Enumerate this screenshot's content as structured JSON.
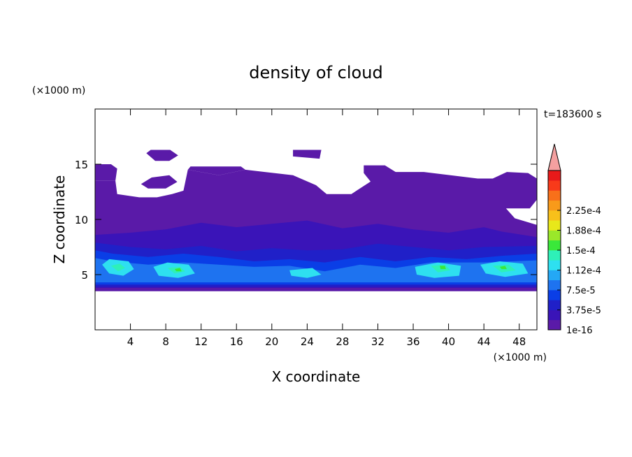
{
  "chart_data": {
    "type": "heatmap",
    "title": "density of cloud",
    "xlabel": "X coordinate",
    "ylabel": "Z coordinate",
    "x_unit": "(×1000 m)",
    "y_unit": "(×1000 m)",
    "time_label": "t=183600 s",
    "xlim": [
      0,
      50
    ],
    "ylim": [
      0,
      20
    ],
    "x_ticks": [
      4,
      8,
      12,
      16,
      20,
      24,
      28,
      32,
      36,
      40,
      44,
      48
    ],
    "y_ticks": [
      5,
      10,
      15
    ],
    "colorbar": {
      "labels": [
        "1e-16",
        "3.75e-5",
        "7.5e-5",
        "1.12e-4",
        "1.5e-4",
        "1.88e-4",
        "2.25e-4"
      ],
      "colors": [
        "#5a1aa8",
        "#3a14b8",
        "#2020c8",
        "#0a3ee6",
        "#1e73f0",
        "#24a8f5",
        "#2ee0f0",
        "#2ef0b8",
        "#3ae83a",
        "#9ae82a",
        "#e8e81a",
        "#f8c01a",
        "#f89a1a",
        "#f8701a",
        "#f83a1a",
        "#e81a1a"
      ],
      "overflow_color": "#f4a0a0"
    },
    "regions": [
      {
        "level": 0,
        "polygon": [
          [
            0,
            3.5
          ],
          [
            50,
            3.5
          ],
          [
            50,
            9.5
          ],
          [
            47.5,
            10.1
          ],
          [
            46.5,
            11
          ],
          [
            49.2,
            11
          ],
          [
            50,
            11.8
          ],
          [
            50,
            13.7
          ],
          [
            49,
            14.2
          ],
          [
            46.6,
            14.3
          ],
          [
            45,
            13.7
          ],
          [
            43.3,
            13.7
          ],
          [
            37.2,
            14.3
          ],
          [
            34,
            14.3
          ],
          [
            31.5,
            13.6
          ],
          [
            29,
            12.3
          ],
          [
            26.2,
            12.3
          ],
          [
            25,
            13.1
          ],
          [
            22.4,
            14
          ],
          [
            17,
            14.5
          ],
          [
            14,
            14
          ],
          [
            10.5,
            14.5
          ],
          [
            10,
            12.6
          ],
          [
            8.7,
            12.3
          ],
          [
            7,
            12
          ],
          [
            5,
            12
          ],
          [
            2.5,
            12.3
          ],
          [
            2.3,
            13.5
          ],
          [
            0,
            13.5
          ],
          [
            0,
            9.5
          ],
          [
            1.5,
            9.6
          ],
          [
            0,
            10.6
          ]
        ]
      },
      {
        "level": 0,
        "polygon": [
          [
            0,
            13.5
          ],
          [
            2.3,
            13.5
          ],
          [
            2.5,
            14.6
          ],
          [
            1.8,
            15
          ],
          [
            0,
            15
          ]
        ]
      },
      {
        "level": 0,
        "polygon": [
          [
            10.5,
            14.5
          ],
          [
            14,
            14
          ],
          [
            17,
            14.5
          ],
          [
            16.5,
            14.8
          ],
          [
            10.8,
            14.8
          ]
        ]
      },
      {
        "level": 0,
        "polygon": [
          [
            5.2,
            13.2
          ],
          [
            6.4,
            13.8
          ],
          [
            8.4,
            14
          ],
          [
            9.3,
            13.4
          ],
          [
            8,
            12.8
          ],
          [
            6,
            12.8
          ]
        ]
      },
      {
        "level": 0,
        "polygon": [
          [
            5.8,
            16
          ],
          [
            6.3,
            16.3
          ],
          [
            8.5,
            16.3
          ],
          [
            9.4,
            15.8
          ],
          [
            8.4,
            15.3
          ],
          [
            6.8,
            15.3
          ]
        ]
      },
      {
        "level": 0,
        "polygon": [
          [
            22.4,
            16.3
          ],
          [
            25.6,
            16.3
          ],
          [
            25.4,
            15.5
          ],
          [
            22.4,
            15.7
          ]
        ]
      },
      {
        "level": 0,
        "polygon": [
          [
            30.4,
            14.9
          ],
          [
            32.8,
            14.9
          ],
          [
            34.2,
            14.2
          ],
          [
            33,
            13.4
          ],
          [
            31.2,
            13.4
          ],
          [
            30.4,
            14.2
          ]
        ]
      },
      {
        "level": 1,
        "polygon": [
          [
            0,
            3.8
          ],
          [
            50,
            3.8
          ],
          [
            50,
            8.4
          ],
          [
            46,
            8.9
          ],
          [
            44,
            9.3
          ],
          [
            40,
            8.8
          ],
          [
            36,
            9.1
          ],
          [
            32,
            9.6
          ],
          [
            28,
            9.2
          ],
          [
            24,
            9.9
          ],
          [
            20,
            9.6
          ],
          [
            16,
            9.3
          ],
          [
            12,
            9.7
          ],
          [
            8,
            9.1
          ],
          [
            4,
            8.8
          ],
          [
            0,
            8.6
          ]
        ]
      },
      {
        "level": 2,
        "polygon": [
          [
            0,
            3.9
          ],
          [
            50,
            3.9
          ],
          [
            50,
            7.6
          ],
          [
            44,
            7.5
          ],
          [
            40,
            7.2
          ],
          [
            36,
            7.5
          ],
          [
            32,
            7.8
          ],
          [
            28,
            7.3
          ],
          [
            24,
            7.2
          ],
          [
            20,
            7.4
          ],
          [
            16,
            7.1
          ],
          [
            12,
            7.6
          ],
          [
            8,
            7.3
          ],
          [
            4,
            7.5
          ],
          [
            0,
            7.9
          ]
        ]
      },
      {
        "level": 3,
        "polygon": [
          [
            0,
            4.1
          ],
          [
            50,
            4.1
          ],
          [
            50,
            6.9
          ],
          [
            46,
            6.7
          ],
          [
            42,
            6.4
          ],
          [
            38,
            6.6
          ],
          [
            34,
            6.2
          ],
          [
            30,
            6.6
          ],
          [
            26,
            6.1
          ],
          [
            22,
            6.4
          ],
          [
            18,
            6.2
          ],
          [
            14,
            6.6
          ],
          [
            10,
            6.9
          ],
          [
            6,
            6.6
          ],
          [
            2,
            6.9
          ],
          [
            0,
            7.2
          ]
        ]
      },
      {
        "level": 4,
        "polygon": [
          [
            0,
            4.3
          ],
          [
            50,
            4.3
          ],
          [
            50,
            6.3
          ],
          [
            44,
            6.1
          ],
          [
            38,
            6.1
          ],
          [
            34,
            5.6
          ],
          [
            30,
            5.9
          ],
          [
            26,
            5.3
          ],
          [
            22,
            5.8
          ],
          [
            18,
            5.7
          ],
          [
            14,
            5.9
          ],
          [
            10,
            6.1
          ],
          [
            6,
            5.9
          ],
          [
            2,
            6.2
          ],
          [
            0,
            6.5
          ]
        ]
      },
      {
        "level": 6,
        "polygon": [
          [
            0.8,
            5.9
          ],
          [
            1.6,
            6.4
          ],
          [
            3.8,
            6.2
          ],
          [
            4.4,
            5.5
          ],
          [
            3.2,
            4.9
          ],
          [
            1.6,
            5.1
          ]
        ]
      },
      {
        "level": 6,
        "polygon": [
          [
            6.6,
            5.7
          ],
          [
            8.2,
            6.1
          ],
          [
            10.6,
            5.9
          ],
          [
            11.3,
            5.1
          ],
          [
            9.4,
            4.7
          ],
          [
            7.2,
            4.9
          ]
        ]
      },
      {
        "level": 6,
        "polygon": [
          [
            22,
            5.4
          ],
          [
            24.6,
            5.6
          ],
          [
            25.6,
            5.0
          ],
          [
            24,
            4.7
          ],
          [
            22.2,
            4.9
          ]
        ]
      },
      {
        "level": 6,
        "polygon": [
          [
            36.2,
            5.7
          ],
          [
            38.8,
            6.1
          ],
          [
            41.4,
            5.8
          ],
          [
            41.2,
            4.9
          ],
          [
            38.4,
            4.7
          ],
          [
            36.4,
            5.0
          ]
        ]
      },
      {
        "level": 6,
        "polygon": [
          [
            43.6,
            5.9
          ],
          [
            45.8,
            6.2
          ],
          [
            48.4,
            6.0
          ],
          [
            49,
            5.1
          ],
          [
            46.4,
            4.8
          ],
          [
            44.2,
            5.1
          ]
        ]
      },
      {
        "level": 7,
        "polygon": [
          [
            1.8,
            5.8
          ],
          [
            2.8,
            6.0
          ],
          [
            3.4,
            5.6
          ],
          [
            2.6,
            5.3
          ]
        ]
      },
      {
        "level": 7,
        "polygon": [
          [
            8.2,
            5.6
          ],
          [
            9.6,
            5.7
          ],
          [
            10.2,
            5.3
          ],
          [
            9.0,
            5.1
          ]
        ]
      },
      {
        "level": 7,
        "polygon": [
          [
            38.0,
            5.8
          ],
          [
            39.6,
            5.9
          ],
          [
            40.2,
            5.4
          ],
          [
            38.8,
            5.2
          ]
        ]
      },
      {
        "level": 7,
        "polygon": [
          [
            45.0,
            5.8
          ],
          [
            46.8,
            5.9
          ],
          [
            47.6,
            5.4
          ],
          [
            46.0,
            5.2
          ]
        ]
      },
      {
        "level": 8,
        "polygon": [
          [
            9.0,
            5.5
          ],
          [
            9.6,
            5.6
          ],
          [
            9.8,
            5.3
          ],
          [
            9.2,
            5.3
          ]
        ]
      },
      {
        "level": 8,
        "polygon": [
          [
            39.0,
            5.8
          ],
          [
            39.6,
            5.8
          ],
          [
            39.7,
            5.5
          ],
          [
            39.1,
            5.5
          ]
        ]
      },
      {
        "level": 8,
        "polygon": [
          [
            45.8,
            5.7
          ],
          [
            46.4,
            5.8
          ],
          [
            46.6,
            5.5
          ],
          [
            46.0,
            5.5
          ]
        ]
      }
    ]
  }
}
